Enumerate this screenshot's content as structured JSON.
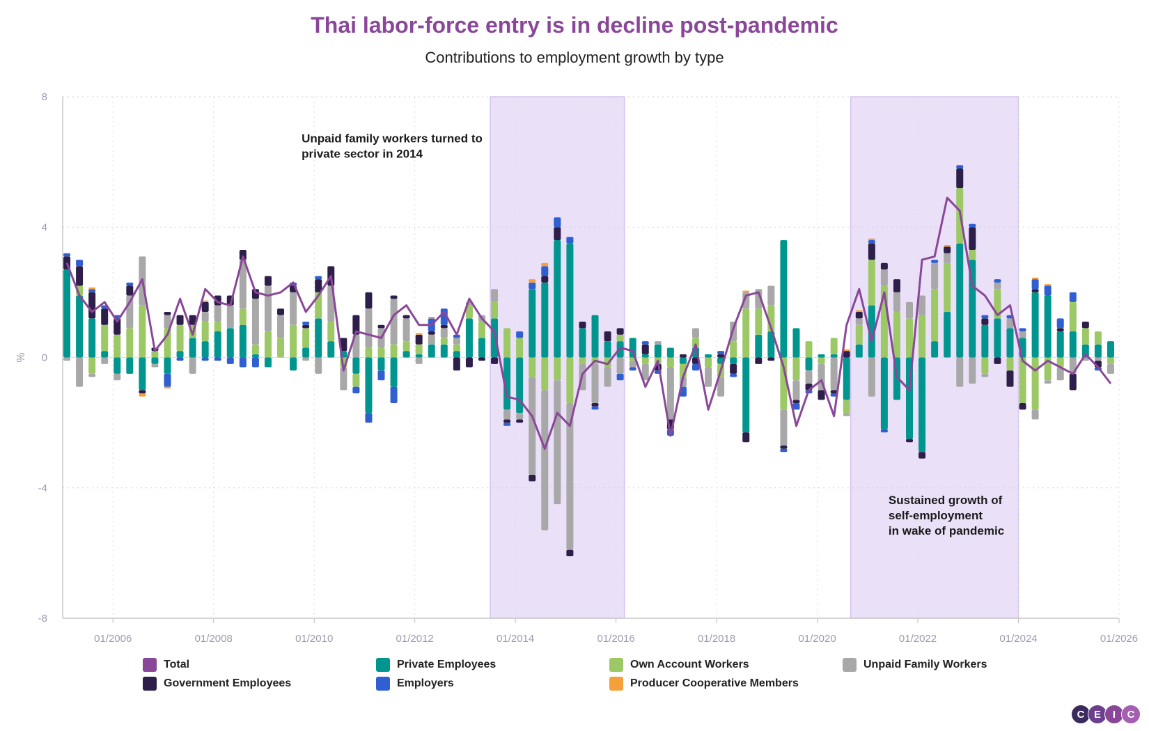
{
  "header": {
    "title": "Thai labor-force entry is in decline post-pandemic",
    "subtitle": "Contributions to employment growth by type"
  },
  "colors": {
    "total": "#8a4799",
    "private": "#00968f",
    "own": "#9cc865",
    "unpaid": "#a8a8a8",
    "government": "#2e1f4a",
    "employers": "#2f5fd0",
    "coop": "#f5a03a",
    "shade": "#eae0f8"
  },
  "logo": [
    "C",
    "E",
    "I",
    "C"
  ],
  "chart_data": {
    "type": "bar",
    "stacked": true,
    "x_start": "2005-01",
    "x_end": "2025-12",
    "frequency": "quarterly",
    "ylabel": "%",
    "ylim": [
      -8,
      8
    ],
    "yticks": [
      -8,
      -4,
      0,
      4,
      8
    ],
    "xticks": [
      "01/2006",
      "01/2008",
      "01/2010",
      "01/2012",
      "01/2014",
      "01/2016",
      "01/2018",
      "01/2020",
      "01/2022",
      "01/2024",
      "01/2026"
    ],
    "grid": true,
    "legend_position": "bottom",
    "shaded_periods": [
      {
        "start": "2013-07",
        "end": "2016-03"
      },
      {
        "start": "2020-09",
        "end": "2024-01"
      }
    ],
    "annotations": [
      {
        "text": [
          "Unpaid family workers turned to",
          "private sector in 2014"
        ],
        "x": "2009-10",
        "y": 6.6
      },
      {
        "text": [
          "Sustained growth of",
          "self-employment",
          "in wake of pandemic"
        ],
        "x": "2021-06",
        "y": -4.5
      }
    ],
    "series": [
      {
        "name": "Total",
        "key": "total",
        "kind": "line",
        "values": [
          2.9,
          1.9,
          1.4,
          1.7,
          1.1,
          1.7,
          2.4,
          0.2,
          0.7,
          1.8,
          0.7,
          2.1,
          1.7,
          1.6,
          3.1,
          2.0,
          1.9,
          2.0,
          2.3,
          1.4,
          1.9,
          2.5,
          -0.4,
          0.8,
          0.7,
          0.6,
          1.3,
          1.6,
          1.0,
          1.0,
          1.4,
          0.7,
          1.8,
          1.2,
          0.8,
          -1.2,
          -1.3,
          -1.8,
          -2.8,
          -1.7,
          -2.1,
          -0.5,
          -0.1,
          -0.2,
          0.3,
          0.2,
          -0.9,
          -0.1,
          -2.4,
          -0.6,
          0.4,
          -1.6,
          -0.4,
          0.9,
          1.9,
          2.0,
          0.9,
          -0.3,
          -2.1,
          -1.0,
          -0.7,
          -1.8,
          1.0,
          2.1,
          0.5,
          2.0,
          -0.6,
          -1.0,
          3.0,
          3.1,
          4.9,
          4.5,
          2.2,
          1.9,
          1.3,
          1.6,
          -0.1,
          -0.4,
          -0.1,
          -0.3,
          -0.5,
          0.1,
          -0.3,
          -0.8
        ]
      },
      {
        "name": "Private Employees",
        "key": "private",
        "kind": "bar",
        "values": [
          2.7,
          1.9,
          1.2,
          0.2,
          -0.5,
          -0.5,
          -1.0,
          -0.2,
          -0.5,
          0.2,
          0.6,
          0.5,
          0.8,
          0.9,
          1.0,
          0.1,
          -0.3,
          0.0,
          -0.4,
          0.3,
          1.2,
          0.5,
          0.2,
          -0.5,
          -1.7,
          -0.4,
          -0.9,
          0.2,
          0.1,
          0.4,
          0.4,
          0.2,
          1.2,
          0.6,
          1.2,
          -1.6,
          -1.7,
          2.1,
          2.3,
          3.6,
          3.5,
          0.9,
          1.3,
          0.5,
          0.5,
          0.6,
          0.1,
          0.4,
          0.3,
          -0.2,
          0.3,
          0.1,
          -0.2,
          -0.2,
          -2.3,
          0.7,
          0.8,
          3.6,
          0.9,
          -0.4,
          0.1,
          0.1,
          -1.3,
          0.4,
          1.6,
          -2.2,
          -1.3,
          -2.5,
          -2.9,
          0.5,
          1.4,
          3.5,
          3.0,
          1.0,
          1.2,
          0.9,
          0.6,
          2.0,
          1.9,
          0.8,
          0.8,
          0.4,
          0.4,
          0.5
        ]
      },
      {
        "name": "Own Account Workers",
        "key": "own",
        "kind": "bar",
        "values": [
          0.0,
          0.3,
          -0.5,
          0.8,
          0.7,
          0.9,
          1.6,
          0.2,
          0.9,
          0.8,
          0.4,
          0.6,
          0.3,
          0.0,
          0.5,
          0.3,
          0.8,
          0.6,
          1.0,
          0.6,
          0.8,
          0.6,
          -0.3,
          -0.4,
          0.3,
          0.3,
          0.4,
          0.3,
          0.3,
          0.0,
          0.2,
          0.2,
          0.4,
          0.5,
          0.5,
          0.9,
          0.6,
          -0.6,
          -1.0,
          -0.7,
          -1.4,
          -0.2,
          -0.2,
          -0.3,
          0.2,
          -0.1,
          -0.2,
          -0.2,
          -0.3,
          -0.4,
          0.3,
          -0.3,
          -0.4,
          0.5,
          1.5,
          0.8,
          0.8,
          -1.6,
          -0.7,
          0.5,
          -0.2,
          0.5,
          -0.4,
          0.6,
          1.4,
          2.2,
          1.4,
          1.2,
          1.3,
          1.6,
          1.5,
          1.7,
          0.3,
          -0.5,
          0.9,
          -0.4,
          -1.4,
          -1.6,
          -0.7,
          -0.3,
          0.9,
          0.5,
          0.4,
          -0.2
        ]
      },
      {
        "name": "Unpaid Family Workers",
        "key": "unpaid",
        "kind": "bar",
        "values": [
          -0.1,
          -0.9,
          -0.1,
          -0.2,
          -0.2,
          1.0,
          1.5,
          -0.1,
          0.4,
          0.0,
          -0.5,
          0.3,
          0.5,
          0.7,
          1.5,
          1.4,
          1.4,
          0.7,
          1.0,
          -0.1,
          -0.5,
          1.1,
          -0.7,
          0.7,
          1.2,
          0.6,
          1.4,
          0.7,
          -0.2,
          0.3,
          0.3,
          0.2,
          0.1,
          0.2,
          0.4,
          -0.3,
          -0.2,
          -3.0,
          -4.3,
          -3.8,
          -4.5,
          -0.8,
          -1.2,
          -0.6,
          -0.5,
          -0.2,
          -0.5,
          0.1,
          -1.6,
          -0.3,
          0.3,
          -0.6,
          -0.6,
          0.6,
          0.5,
          0.6,
          0.6,
          -1.1,
          -0.6,
          -0.4,
          -0.8,
          -1.0,
          -0.1,
          0.2,
          -1.2,
          0.5,
          0.6,
          0.5,
          0.6,
          0.8,
          0.3,
          -0.9,
          -0.8,
          -0.1,
          0.2,
          0.3,
          0.2,
          -0.3,
          -0.1,
          -0.4,
          -0.5,
          -0.1,
          -0.1,
          -0.3
        ]
      },
      {
        "name": "Government Employees",
        "key": "government",
        "kind": "bar",
        "values": [
          0.4,
          0.6,
          0.8,
          0.5,
          0.5,
          0.3,
          -0.1,
          0.1,
          0.1,
          0.3,
          0.3,
          0.3,
          0.3,
          0.3,
          0.3,
          0.3,
          0.3,
          0.2,
          0.2,
          0.1,
          0.4,
          0.6,
          0.4,
          0.6,
          0.5,
          0.1,
          0.1,
          0.1,
          0.3,
          0.1,
          0.1,
          -0.4,
          -0.3,
          -0.1,
          -0.2,
          -0.1,
          -0.1,
          -0.2,
          0.2,
          0.4,
          -0.2,
          0.2,
          -0.1,
          0.3,
          0.2,
          0.0,
          0.3,
          -0.2,
          -0.3,
          0.1,
          -0.2,
          0.0,
          0.1,
          -0.3,
          -0.3,
          -0.2,
          -0.1,
          -0.1,
          -0.1,
          -0.2,
          -0.3,
          -0.1,
          0.2,
          0.2,
          0.5,
          0.2,
          0.4,
          -0.1,
          -0.2,
          0.0,
          0.2,
          0.6,
          0.7,
          0.2,
          -0.2,
          -0.5,
          -0.2,
          0.1,
          0.0,
          0.1,
          -0.5,
          0.2,
          -0.2,
          0.0
        ]
      },
      {
        "name": "Employers",
        "key": "employers",
        "kind": "bar",
        "values": [
          0.1,
          0.2,
          0.1,
          0.1,
          0.1,
          0.1,
          0.0,
          0.0,
          -0.4,
          -0.1,
          0.0,
          -0.1,
          -0.1,
          -0.2,
          -0.3,
          -0.3,
          0.0,
          0.0,
          0.1,
          0.1,
          0.1,
          0.0,
          0.0,
          -0.2,
          -0.3,
          -0.3,
          -0.5,
          0.0,
          0.0,
          0.4,
          0.5,
          0.1,
          0.0,
          0.0,
          0.0,
          -0.1,
          0.2,
          0.2,
          0.3,
          0.3,
          0.2,
          0.0,
          -0.1,
          0.0,
          -0.2,
          -0.1,
          0.1,
          -0.1,
          -0.2,
          -0.3,
          -0.2,
          0.0,
          0.1,
          -0.1,
          0.0,
          0.0,
          0.0,
          -0.1,
          -0.2,
          -0.1,
          0.0,
          -0.1,
          0.0,
          0.0,
          0.1,
          -0.1,
          0.0,
          0.0,
          0.0,
          0.1,
          0.0,
          0.1,
          0.1,
          0.1,
          0.1,
          0.1,
          0.1,
          0.3,
          0.3,
          0.3,
          0.3,
          0.0,
          -0.1,
          0.0
        ]
      },
      {
        "name": "Producer Cooperative Members",
        "key": "coop",
        "kind": "bar",
        "values": [
          0.0,
          0.0,
          0.05,
          0.0,
          0.0,
          0.0,
          -0.1,
          0.0,
          -0.05,
          0.0,
          0.0,
          0.05,
          0.0,
          0.0,
          0.0,
          0.0,
          0.0,
          0.0,
          0.0,
          0.0,
          0.0,
          0.0,
          0.0,
          0.0,
          0.0,
          0.0,
          0.0,
          0.0,
          0.05,
          0.05,
          0.0,
          0.0,
          0.0,
          0.0,
          0.0,
          0.0,
          0.0,
          0.1,
          0.1,
          0.0,
          0.0,
          0.0,
          0.0,
          0.0,
          0.0,
          0.0,
          0.0,
          0.0,
          0.0,
          0.0,
          0.0,
          0.0,
          0.0,
          0.0,
          0.05,
          0.0,
          0.0,
          0.0,
          0.0,
          0.0,
          0.0,
          0.0,
          0.05,
          0.05,
          0.05,
          0.0,
          0.0,
          0.0,
          0.0,
          0.0,
          0.05,
          0.0,
          0.0,
          0.0,
          0.0,
          0.0,
          0.0,
          0.05,
          0.05,
          0.0,
          0.0,
          0.0,
          0.0,
          0.0
        ]
      }
    ]
  }
}
